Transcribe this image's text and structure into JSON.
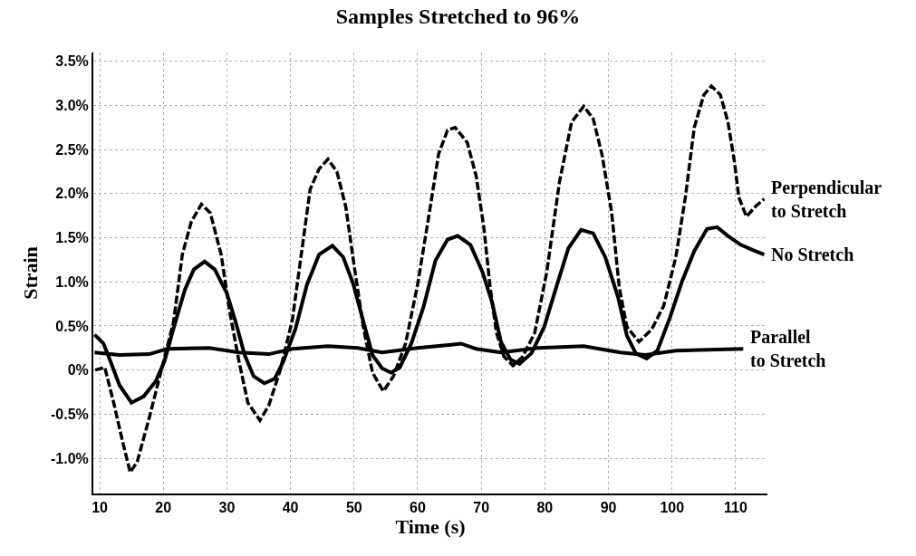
{
  "chart_data": {
    "type": "line",
    "title": "Samples Stretched to 96%",
    "xlabel": "Time (s)",
    "ylabel": "Strain",
    "xlim": [
      9,
      115
    ],
    "xticks": [
      10,
      20,
      30,
      40,
      50,
      60,
      70,
      80,
      90,
      100,
      110
    ],
    "ylim": [
      -1.4,
      3.6
    ],
    "yticks": [
      {
        "value": -1.0,
        "label": "-1.0%"
      },
      {
        "value": -0.5,
        "label": "-0.5%"
      },
      {
        "value": 0,
        "label": "0%"
      },
      {
        "value": 0.5,
        "label": "0.5%"
      },
      {
        "value": 1.0,
        "label": "1.0%"
      },
      {
        "value": 1.5,
        "label": "1.5%"
      },
      {
        "value": 2.0,
        "label": "2.0%"
      },
      {
        "value": 2.5,
        "label": "2.5%"
      },
      {
        "value": 3.0,
        "label": "3.0%"
      },
      {
        "value": 3.5,
        "label": "3.5%"
      }
    ],
    "grid": true,
    "legend": false,
    "marker": "none",
    "series": [
      {
        "name": "Perpendicular\nto Stretch",
        "color": "#000000",
        "line_style": "dashed",
        "x": [
          9.3,
          10.8,
          12.2,
          13.6,
          14.8,
          15.9,
          17.8,
          19.7,
          21.6,
          23.0,
          24.4,
          26.0,
          27.4,
          29.1,
          30.5,
          31.9,
          33.3,
          35.2,
          36.6,
          38.4,
          40.3,
          41.7,
          43.1,
          44.5,
          45.9,
          47.3,
          48.7,
          50.1,
          51.5,
          52.9,
          54.6,
          56.2,
          58.1,
          60.0,
          61.9,
          63.3,
          64.7,
          65.9,
          67.8,
          69.2,
          70.4,
          71.4,
          72.4,
          73.6,
          75.0,
          76.5,
          78.4,
          80.3,
          82.3,
          84.2,
          86.1,
          87.6,
          89.0,
          90.5,
          91.7,
          92.9,
          94.8,
          96.8,
          98.7,
          100.6,
          102.1,
          103.5,
          105.0,
          106.2,
          107.6,
          108.8,
          109.8,
          110.5,
          111.2,
          111.7,
          113.2,
          114.5
        ],
        "values": [
          0.0,
          0.03,
          -0.37,
          -0.81,
          -1.16,
          -1.04,
          -0.54,
          0.0,
          0.54,
          1.31,
          1.68,
          1.88,
          1.78,
          1.31,
          0.64,
          0.1,
          -0.37,
          -0.57,
          -0.4,
          0.0,
          0.57,
          1.31,
          2.05,
          2.28,
          2.39,
          2.25,
          1.85,
          1.14,
          0.47,
          -0.03,
          -0.24,
          -0.07,
          0.3,
          0.97,
          1.81,
          2.45,
          2.72,
          2.75,
          2.58,
          2.2,
          1.62,
          0.94,
          0.42,
          0.15,
          0.05,
          0.15,
          0.42,
          1.11,
          2.13,
          2.81,
          2.99,
          2.85,
          2.44,
          1.79,
          0.94,
          0.49,
          0.32,
          0.46,
          0.73,
          1.28,
          1.96,
          2.75,
          3.12,
          3.22,
          3.12,
          2.81,
          2.37,
          1.96,
          1.83,
          1.74,
          1.86,
          1.94
        ]
      },
      {
        "name": "No Stretch",
        "color": "#000000",
        "line_style": "solid",
        "x": [
          9.2,
          10.6,
          11.7,
          13.1,
          15.0,
          16.9,
          18.8,
          20.2,
          21.6,
          23.4,
          24.8,
          26.5,
          28.1,
          30.0,
          31.4,
          32.8,
          34.2,
          35.9,
          37.5,
          38.9,
          40.8,
          42.6,
          44.5,
          46.6,
          48.3,
          49.9,
          51.5,
          52.9,
          54.4,
          55.8,
          57.2,
          59.0,
          60.9,
          62.8,
          64.7,
          66.3,
          68.3,
          70.2,
          71.7,
          73.1,
          74.6,
          76.0,
          77.9,
          79.9,
          81.8,
          83.7,
          85.7,
          87.6,
          89.5,
          91.5,
          92.9,
          94.3,
          96.0,
          97.7,
          99.7,
          101.6,
          103.5,
          105.5,
          107.1,
          108.8,
          110.8,
          112.7,
          114.5
        ],
        "values": [
          0.4,
          0.3,
          0.1,
          -0.17,
          -0.37,
          -0.3,
          -0.13,
          0.1,
          0.47,
          0.91,
          1.14,
          1.23,
          1.14,
          0.87,
          0.54,
          0.17,
          -0.07,
          -0.15,
          -0.1,
          0.1,
          0.47,
          0.97,
          1.31,
          1.41,
          1.28,
          0.97,
          0.54,
          0.17,
          0.02,
          -0.03,
          0.03,
          0.3,
          0.71,
          1.24,
          1.48,
          1.52,
          1.42,
          1.11,
          0.77,
          0.32,
          0.12,
          0.07,
          0.19,
          0.49,
          0.94,
          1.38,
          1.59,
          1.55,
          1.28,
          0.83,
          0.39,
          0.19,
          0.13,
          0.22,
          0.6,
          1.01,
          1.35,
          1.6,
          1.62,
          1.52,
          1.42,
          1.36,
          1.31
        ]
      },
      {
        "name": "Parallel\nto Stretch",
        "color": "#000000",
        "line_style": "solid",
        "x": [
          9.2,
          13.1,
          17.8,
          20.6,
          27.2,
          31.9,
          36.6,
          40.3,
          45.9,
          50.6,
          54.4,
          60.0,
          65.6,
          66.8,
          69.2,
          73.1,
          78.9,
          86.1,
          91.9,
          95.8,
          100.6,
          111.2
        ],
        "values": [
          0.2,
          0.17,
          0.18,
          0.24,
          0.25,
          0.2,
          0.18,
          0.24,
          0.27,
          0.25,
          0.2,
          0.25,
          0.29,
          0.3,
          0.24,
          0.2,
          0.25,
          0.27,
          0.2,
          0.17,
          0.22,
          0.24
        ]
      }
    ]
  }
}
